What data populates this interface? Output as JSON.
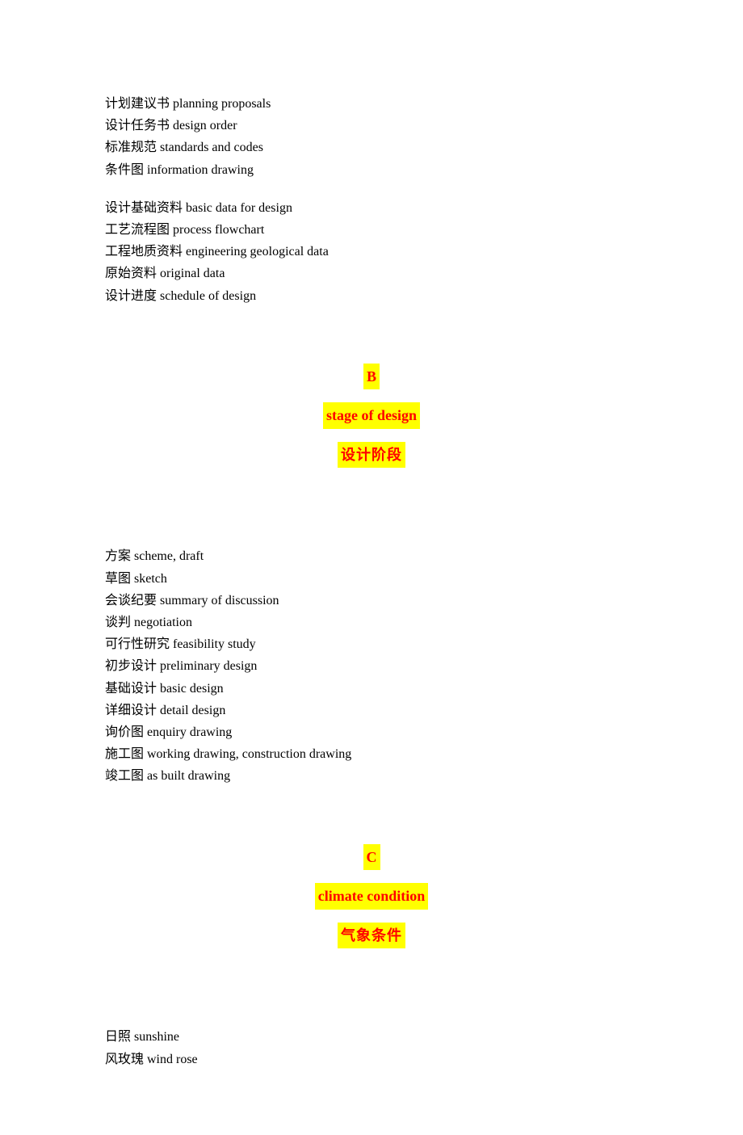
{
  "groupA1": [
    "计划建议书 planning proposals",
    "设计任务书 design order",
    "标准规范 standards and codes",
    "条件图 information drawing"
  ],
  "groupA2": [
    "设计基础资料 basic data for design",
    "工艺流程图 process flowchart",
    "工程地质资料 engineering geological data",
    "原始资料 original data",
    "设计进度 schedule of design"
  ],
  "sectionB": {
    "letter": "B",
    "en": "stage of design",
    "cn": "设计阶段"
  },
  "groupB": [
    "方案 scheme, draft",
    "草图 sketch",
    "会谈纪要 summary of discussion",
    "谈判 negotiation",
    "可行性研究 feasibility study",
    "初步设计 preliminary design",
    "基础设计 basic design",
    "详细设计 detail design",
    "询价图 enquiry drawing",
    "施工图 working drawing, construction drawing",
    "竣工图 as built drawing"
  ],
  "sectionC": {
    "letter": "C",
    "en": "climate condition",
    "cn": "气象条件"
  },
  "groupC": [
    "日照 sunshine",
    "风玫瑰 wind rose"
  ],
  "styles": {
    "highlight_bg": "#ffff00",
    "highlight_color": "#ff0000",
    "body_color": "#000000",
    "body_fontsize": 16,
    "header_fontsize": 18
  }
}
